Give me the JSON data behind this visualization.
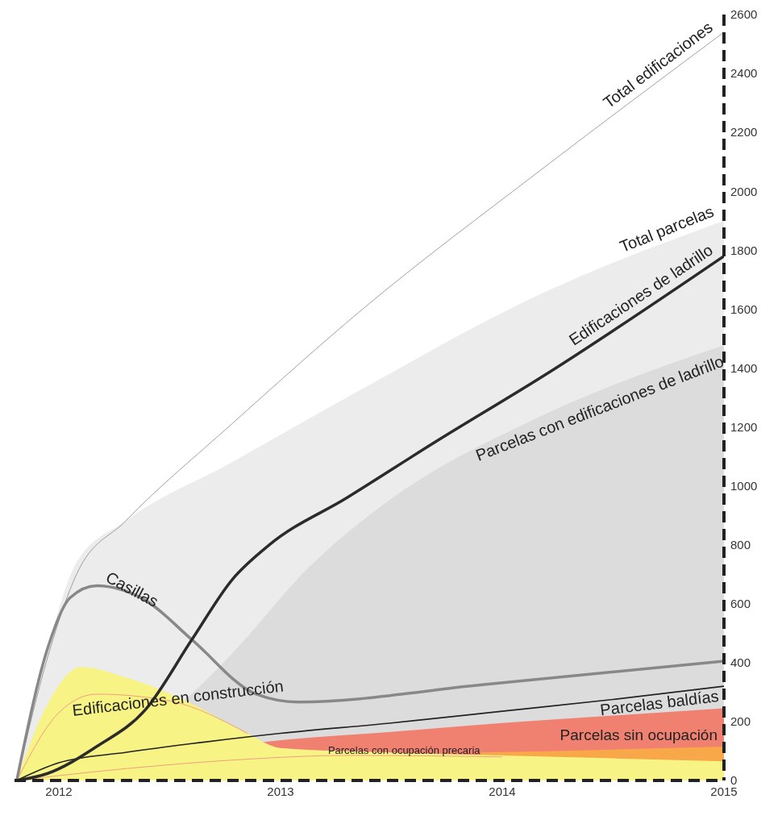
{
  "chart_data": {
    "type": "line",
    "xlim": [
      2011.8,
      2015
    ],
    "xticks": [
      2012,
      2013,
      2014,
      2015
    ],
    "ylim": [
      0,
      2600
    ],
    "yticks": [
      0,
      200,
      400,
      600,
      800,
      1000,
      1200,
      1400,
      1600,
      1800,
      2000,
      2200,
      2400,
      2600
    ],
    "grid": false,
    "legend": false,
    "marker": "none",
    "series": [
      {
        "name": "Total parcelas",
        "type": "area",
        "color": "#ececec",
        "x": [
          2011.81,
          2011.95,
          2012.08,
          2012.3,
          2012.78,
          2013.37,
          2014.17,
          2015
        ],
        "values": [
          0,
          450,
          740,
          880,
          1080,
          1330,
          1650,
          1900
        ]
      },
      {
        "name": "Parcelas con edificaciones de ladrillo",
        "type": "area",
        "color": "#dcdcdc",
        "x": [
          2011.81,
          2012.6,
          2012.78,
          2013.13,
          2013.47,
          2014.17,
          2015
        ],
        "values": [
          0,
          295,
          430,
          725,
          940,
          1235,
          1477
        ]
      },
      {
        "name": "Parcelas sin ocupación",
        "type": "area",
        "color": "#f08070",
        "x": [
          2012.92,
          2013.05,
          2013.5,
          2014,
          2014.5,
          2015
        ],
        "values": [
          130,
          140,
          165,
          195,
          220,
          245
        ]
      },
      {
        "name": "Parcelas con ocupación precaria",
        "type": "area",
        "color": "#f8a848",
        "x": [
          2013.9,
          2014.5,
          2015
        ],
        "values": [
          95,
          105,
          115
        ]
      },
      {
        "name": "Edificaciones en construcción",
        "type": "area",
        "color": "#f7f385",
        "x": [
          2011.81,
          2011.95,
          2012.1,
          2012.3,
          2012.6,
          2012.85,
          2013,
          2013.5,
          2014,
          2014.5,
          2015
        ],
        "values": [
          0,
          260,
          385,
          350,
          260,
          160,
          110,
          95,
          85,
          75,
          65
        ]
      },
      {
        "color": "#f0a080",
        "x": [
          2011.81,
          2012,
          2012.17,
          2012.5,
          2012.85
        ],
        "values": [
          0,
          230,
          293,
          270,
          160
        ]
      },
      {
        "color": "#f0a080",
        "x": [
          2011.81,
          2012.3,
          2012.8,
          2013.3,
          2014
        ],
        "values": [
          0,
          40,
          70,
          85,
          80
        ]
      },
      {
        "name": "Parcelas baldías",
        "color": "#222222",
        "x": [
          2011.81,
          2012,
          2012.3,
          2012.6,
          2013,
          2013.5,
          2014,
          2014.5,
          2015
        ],
        "values": [
          0,
          60,
          95,
          125,
          160,
          195,
          235,
          275,
          320
        ]
      },
      {
        "name": "Casillas",
        "color": "#888888",
        "x": [
          2011.81,
          2011.95,
          2012.05,
          2012.17,
          2012.39,
          2012.6,
          2012.89,
          2013.08,
          2013.91,
          2015
        ],
        "values": [
          0,
          450,
          620,
          661,
          612,
          478,
          293,
          266,
          325,
          405
        ]
      },
      {
        "name": "Edificaciones de ladrillo",
        "color": "#2b2b2b",
        "x": [
          2011.81,
          2011.95,
          2012.17,
          2012.39,
          2012.6,
          2012.78,
          2012.95,
          2013.3,
          2013.7,
          2014.2,
          2015
        ],
        "values": [
          0,
          24,
          115,
          240,
          478,
          680,
          800,
          960,
          1150,
          1380,
          1780
        ]
      },
      {
        "name": "Total edificaciones",
        "color": "#888888",
        "x": [
          2011.81,
          2011.95,
          2012.08,
          2012.3,
          2012.78,
          2013.37,
          2014.17,
          2015
        ],
        "values": [
          0,
          420,
          700,
          880,
          1210,
          1600,
          2070,
          2540
        ]
      }
    ]
  }
}
